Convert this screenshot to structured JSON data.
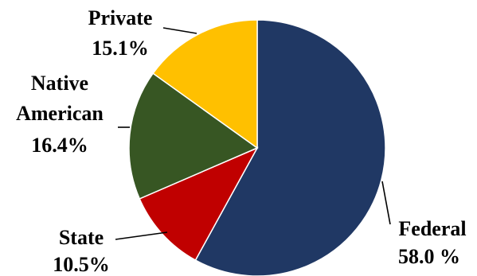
{
  "chart_data": {
    "type": "pie",
    "slices": [
      {
        "name": "Federal",
        "value": 58.0,
        "label": "58.0 %",
        "color": "#203864"
      },
      {
        "name": "State",
        "value": 10.5,
        "label": "10.5%",
        "color": "#c00000"
      },
      {
        "name": "Native American",
        "label_lines": [
          "Native",
          "American"
        ],
        "value": 16.4,
        "label": "16.4%",
        "color": "#375623"
      },
      {
        "name": "Private",
        "value": 15.1,
        "label": "15.1%",
        "color": "#ffc000"
      }
    ],
    "start": "12 o'clock",
    "direction": "clockwise",
    "legend": "none",
    "labels": "outside with leader lines"
  }
}
